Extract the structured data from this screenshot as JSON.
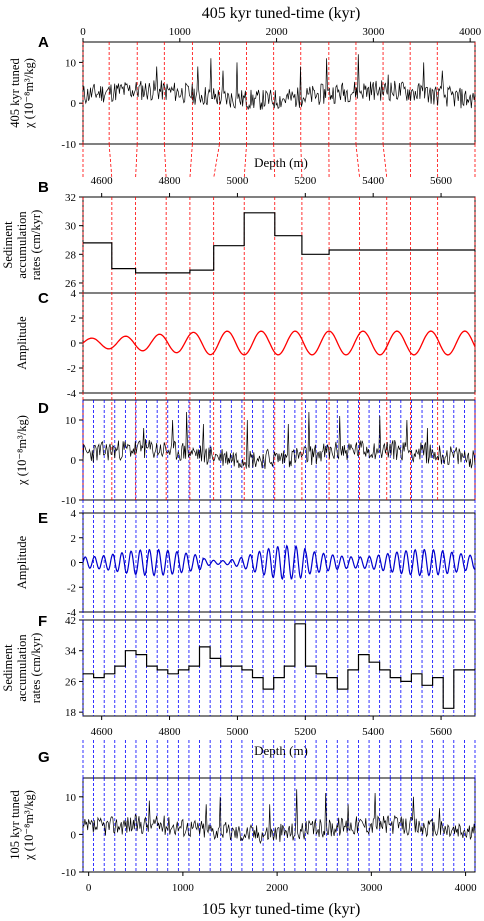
{
  "figure": {
    "top_axis_title": "405 kyr tuned-time (kyr)",
    "depth_title_1": "Depth (m)",
    "depth_title_2": "Depth (m)",
    "bottom_axis_title": "105 kyr tuned-time (kyr)"
  },
  "chart_data": [
    {
      "panel": "A",
      "type": "line",
      "ylabel": [
        "405 kyr tuned",
        "χ (10⁻⁸m³/kg)"
      ],
      "x_axis_ticks": [
        "0",
        "1000",
        "2000",
        "3000",
        "4000"
      ],
      "xlim": [
        0,
        4050
      ],
      "ylim": [
        -10,
        15
      ],
      "yticks": [
        -10,
        0,
        10
      ],
      "series": [
        {
          "color": "#000000",
          "baseline": 2.0,
          "noise": 2.6,
          "spikes": [
            {
              "x": 760,
              "y": 9
            },
            {
              "x": 1190,
              "y": 9
            },
            {
              "x": 1320,
              "y": 11
            },
            {
              "x": 1450,
              "y": 8
            },
            {
              "x": 1590,
              "y": 10
            },
            {
              "x": 2250,
              "y": 9
            },
            {
              "x": 2520,
              "y": 11
            },
            {
              "x": 2840,
              "y": 12
            },
            {
              "x": 3150,
              "y": 7
            },
            {
              "x": 3520,
              "y": 10
            },
            {
              "x": 3710,
              "y": 8
            }
          ]
        }
      ]
    },
    {
      "panel": "B",
      "type": "line",
      "ylabel": [
        "Sediment",
        "accumulation",
        "rates (cm/kyr)"
      ],
      "x_axis_ticks": [
        "4600",
        "4800",
        "5000",
        "5200",
        "5400",
        "5600"
      ],
      "xlim": [
        4545,
        5700
      ],
      "ylim": [
        25.3,
        32
      ],
      "yticks": [
        26,
        28,
        30,
        32
      ],
      "steps": [
        [
          4545,
          28.8
        ],
        [
          4630,
          28.8
        ],
        [
          4630,
          27.0
        ],
        [
          4700,
          27.0
        ],
        [
          4700,
          26.7
        ],
        [
          4860,
          26.7
        ],
        [
          4860,
          26.9
        ],
        [
          4930,
          26.9
        ],
        [
          4930,
          28.6
        ],
        [
          5020,
          28.6
        ],
        [
          5020,
          30.9
        ],
        [
          5110,
          30.9
        ],
        [
          5110,
          29.3
        ],
        [
          5190,
          29.3
        ],
        [
          5190,
          28.0
        ],
        [
          5270,
          28.0
        ],
        [
          5270,
          28.3
        ],
        [
          5360,
          28.3
        ],
        [
          5360,
          28.3
        ],
        [
          5700,
          28.3
        ]
      ]
    },
    {
      "panel": "C",
      "type": "line",
      "ylabel": [
        "Amplitude"
      ],
      "xlim": [
        4545,
        5700
      ],
      "ylim": [
        -4,
        4
      ],
      "yticks": [
        -4,
        -2,
        0,
        2,
        4
      ],
      "series": [
        {
          "color": "#ff0000",
          "period_m": 100,
          "amp_start": 0.35,
          "amp_end": 0.95
        }
      ]
    },
    {
      "panel": "D",
      "type": "line",
      "ylabel": [
        "χ (10⁻⁸m³/kg)"
      ],
      "xlim": [
        4545,
        5700
      ],
      "ylim": [
        -10,
        15
      ],
      "yticks": [
        -10,
        0,
        10
      ],
      "series": [
        {
          "color": "#000000",
          "baseline": 1.5,
          "noise": 2.6,
          "spikes": [
            {
              "x": 4725,
              "y": 8
            },
            {
              "x": 4810,
              "y": 10
            },
            {
              "x": 4850,
              "y": 12
            },
            {
              "x": 4900,
              "y": 9
            },
            {
              "x": 5030,
              "y": 10
            },
            {
              "x": 5150,
              "y": 9
            },
            {
              "x": 5210,
              "y": 12
            },
            {
              "x": 5300,
              "y": 11
            },
            {
              "x": 5420,
              "y": 11
            },
            {
              "x": 5500,
              "y": 10
            },
            {
              "x": 5560,
              "y": 8
            }
          ]
        }
      ]
    },
    {
      "panel": "E",
      "type": "line",
      "ylabel": [
        "Amplitude"
      ],
      "xlim": [
        4545,
        5700
      ],
      "ylim": [
        -4,
        4
      ],
      "yticks": [
        -4,
        -2,
        0,
        2,
        4
      ],
      "series": [
        {
          "color": "#0000cc",
          "period_m": 27
        }
      ]
    },
    {
      "panel": "F",
      "type": "line",
      "ylabel": [
        "Sediment",
        "accumulation",
        "rates (cm/kyr)"
      ],
      "x_axis_ticks": [
        "4600",
        "4800",
        "5000",
        "5200",
        "5400",
        "5600"
      ],
      "xlim": [
        4545,
        5700
      ],
      "ylim": [
        17,
        42
      ],
      "yticks": [
        18,
        26,
        34,
        42
      ],
      "values": [
        28,
        27,
        28,
        30,
        34,
        33,
        30,
        29,
        28,
        29,
        30,
        35,
        32,
        30,
        30,
        29,
        27,
        24,
        27,
        30,
        41,
        30,
        28,
        27,
        24,
        29,
        33,
        31,
        29,
        27,
        26,
        28,
        25,
        27,
        19,
        29,
        29
      ]
    },
    {
      "panel": "G",
      "type": "line",
      "ylabel": [
        "105 kyr tuned",
        "χ (10⁻⁸m³/kg)"
      ],
      "x_axis_ticks": [
        "0",
        "1000",
        "2000",
        "3000",
        "4000"
      ],
      "xlim": [
        -60,
        4100
      ],
      "ylim": [
        -10,
        15
      ],
      "yticks": [
        -10,
        0,
        10
      ],
      "series": [
        {
          "color": "#000000",
          "baseline": 1.5,
          "noise": 2.6,
          "spikes": [
            {
              "x": 640,
              "y": 9
            },
            {
              "x": 1250,
              "y": 8
            },
            {
              "x": 1400,
              "y": 10
            },
            {
              "x": 1920,
              "y": 8
            },
            {
              "x": 2210,
              "y": 12
            },
            {
              "x": 2520,
              "y": 11
            },
            {
              "x": 2750,
              "y": 8
            },
            {
              "x": 3040,
              "y": 11
            },
            {
              "x": 3450,
              "y": 10
            },
            {
              "x": 3720,
              "y": 7
            }
          ]
        }
      ]
    }
  ]
}
